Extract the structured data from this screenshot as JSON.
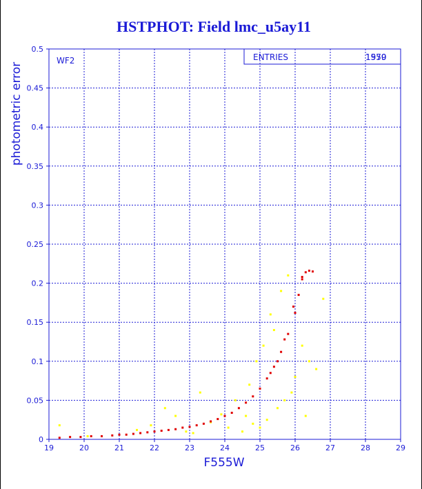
{
  "chart_data": {
    "type": "scatter",
    "title": "HSTPHOT: Field lmc_u5ay11",
    "xlabel": "F555W",
    "ylabel": "photometric error",
    "panel_label": "WF2",
    "stats": {
      "label": "ENTRIES",
      "values": [
        "1979",
        "1550"
      ]
    },
    "xlim": [
      19,
      29
    ],
    "ylim": [
      0,
      0.5
    ],
    "x_ticks": [
      19,
      20,
      21,
      22,
      23,
      24,
      25,
      26,
      27,
      28,
      29
    ],
    "y_ticks": [
      0,
      0.05,
      0.1,
      0.15,
      0.2,
      0.25,
      0.3,
      0.35,
      0.4,
      0.45,
      0.5
    ],
    "grid": true,
    "colors": {
      "text": "#1a1ad6",
      "main_series": "#e00000",
      "second_series": "#ffff00"
    },
    "series": [
      {
        "color": "#e00000",
        "points": [
          [
            19.3,
            0.002
          ],
          [
            19.6,
            0.003
          ],
          [
            19.9,
            0.003
          ],
          [
            20.2,
            0.004
          ],
          [
            20.5,
            0.004
          ],
          [
            20.8,
            0.005
          ],
          [
            21.0,
            0.006
          ],
          [
            21.2,
            0.006
          ],
          [
            21.4,
            0.007
          ],
          [
            21.6,
            0.008
          ],
          [
            21.8,
            0.009
          ],
          [
            22.0,
            0.01
          ],
          [
            22.2,
            0.011
          ],
          [
            22.4,
            0.012
          ],
          [
            22.6,
            0.013
          ],
          [
            22.8,
            0.015
          ],
          [
            23.0,
            0.016
          ],
          [
            23.2,
            0.018
          ],
          [
            23.4,
            0.02
          ],
          [
            23.6,
            0.023
          ],
          [
            23.8,
            0.026
          ],
          [
            24.0,
            0.03
          ],
          [
            24.2,
            0.034
          ],
          [
            24.4,
            0.04
          ],
          [
            24.6,
            0.047
          ],
          [
            24.8,
            0.055
          ],
          [
            25.0,
            0.065
          ],
          [
            25.2,
            0.078
          ],
          [
            25.4,
            0.093
          ],
          [
            25.6,
            0.112
          ],
          [
            25.8,
            0.135
          ],
          [
            26.0,
            0.162
          ],
          [
            26.1,
            0.185
          ],
          [
            26.2,
            0.205
          ],
          [
            26.3,
            0.214
          ],
          [
            26.4,
            0.216
          ],
          [
            26.5,
            0.215
          ],
          [
            26.2,
            0.208
          ],
          [
            25.95,
            0.17
          ],
          [
            25.7,
            0.128
          ],
          [
            25.5,
            0.1
          ],
          [
            25.3,
            0.085
          ]
        ]
      },
      {
        "color": "#ffff00",
        "points": [
          [
            19.3,
            0.018
          ],
          [
            20.1,
            0.004
          ],
          [
            21.5,
            0.012
          ],
          [
            21.9,
            0.018
          ],
          [
            22.3,
            0.04
          ],
          [
            22.6,
            0.03
          ],
          [
            22.9,
            0.01
          ],
          [
            23.1,
            0.008
          ],
          [
            23.3,
            0.06
          ],
          [
            23.6,
            0.022
          ],
          [
            23.9,
            0.032
          ],
          [
            24.1,
            0.015
          ],
          [
            24.3,
            0.05
          ],
          [
            24.6,
            0.03
          ],
          [
            24.8,
            0.02
          ],
          [
            24.9,
            0.1
          ],
          [
            25.0,
            0.015
          ],
          [
            25.1,
            0.12
          ],
          [
            25.2,
            0.025
          ],
          [
            25.3,
            0.16
          ],
          [
            25.5,
            0.04
          ],
          [
            25.6,
            0.19
          ],
          [
            25.7,
            0.05
          ],
          [
            25.8,
            0.21
          ],
          [
            25.9,
            0.06
          ],
          [
            26.0,
            0.08
          ],
          [
            26.2,
            0.12
          ],
          [
            26.4,
            0.1
          ],
          [
            26.6,
            0.09
          ],
          [
            26.8,
            0.18
          ],
          [
            25.4,
            0.14
          ],
          [
            24.7,
            0.07
          ],
          [
            24.5,
            0.01
          ],
          [
            26.3,
            0.03
          ]
        ]
      }
    ]
  }
}
